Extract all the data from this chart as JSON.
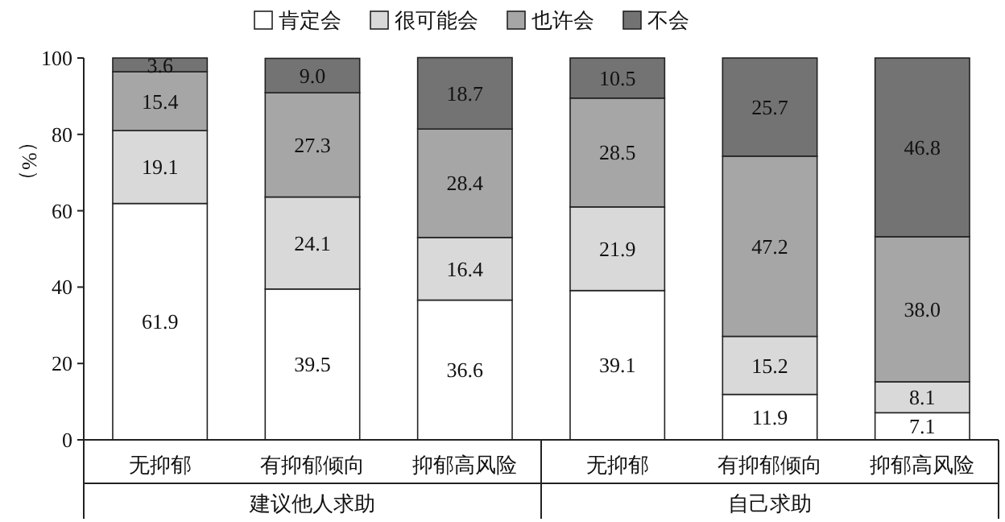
{
  "chart_data": {
    "type": "bar",
    "stacked": true,
    "ylabel": "（%）",
    "categories": [
      "无抑郁",
      "有抑郁倾向",
      "抑郁高风险",
      "无抑郁",
      "有抑郁倾向",
      "抑郁高风险"
    ],
    "series": [
      {
        "name": "肯定会",
        "color": "#ffffff",
        "values": [
          61.9,
          39.5,
          36.6,
          39.1,
          11.9,
          7.1
        ]
      },
      {
        "name": "很可能会",
        "color": "#d9d9d9",
        "values": [
          19.1,
          24.1,
          16.4,
          21.9,
          15.2,
          8.1
        ]
      },
      {
        "name": "也许会",
        "color": "#a6a6a6",
        "values": [
          15.4,
          27.3,
          28.4,
          28.5,
          47.2,
          38.0
        ]
      },
      {
        "name": "不会",
        "color": "#737373",
        "values": [
          3.6,
          9.0,
          18.7,
          10.5,
          25.7,
          46.8
        ]
      }
    ],
    "value_labels": [
      [
        "61.9",
        "39.5",
        "36.6",
        "39.1",
        "11.9",
        "7.1"
      ],
      [
        "19.1",
        "24.1",
        "16.4",
        "21.9",
        "15.2",
        "8.1"
      ],
      [
        "15.4",
        "27.3",
        "28.4",
        "28.5",
        "47.2",
        "38.0"
      ],
      [
        "3.6",
        "9.0",
        "18.7",
        "10.5",
        "25.7",
        "46.8"
      ]
    ],
    "annotations": [
      "建议他人求助",
      "自己求助"
    ],
    "ylim": [
      0,
      100
    ],
    "yticks": [
      0,
      20,
      40,
      60,
      80,
      100
    ],
    "grid": false,
    "legend": "top"
  }
}
